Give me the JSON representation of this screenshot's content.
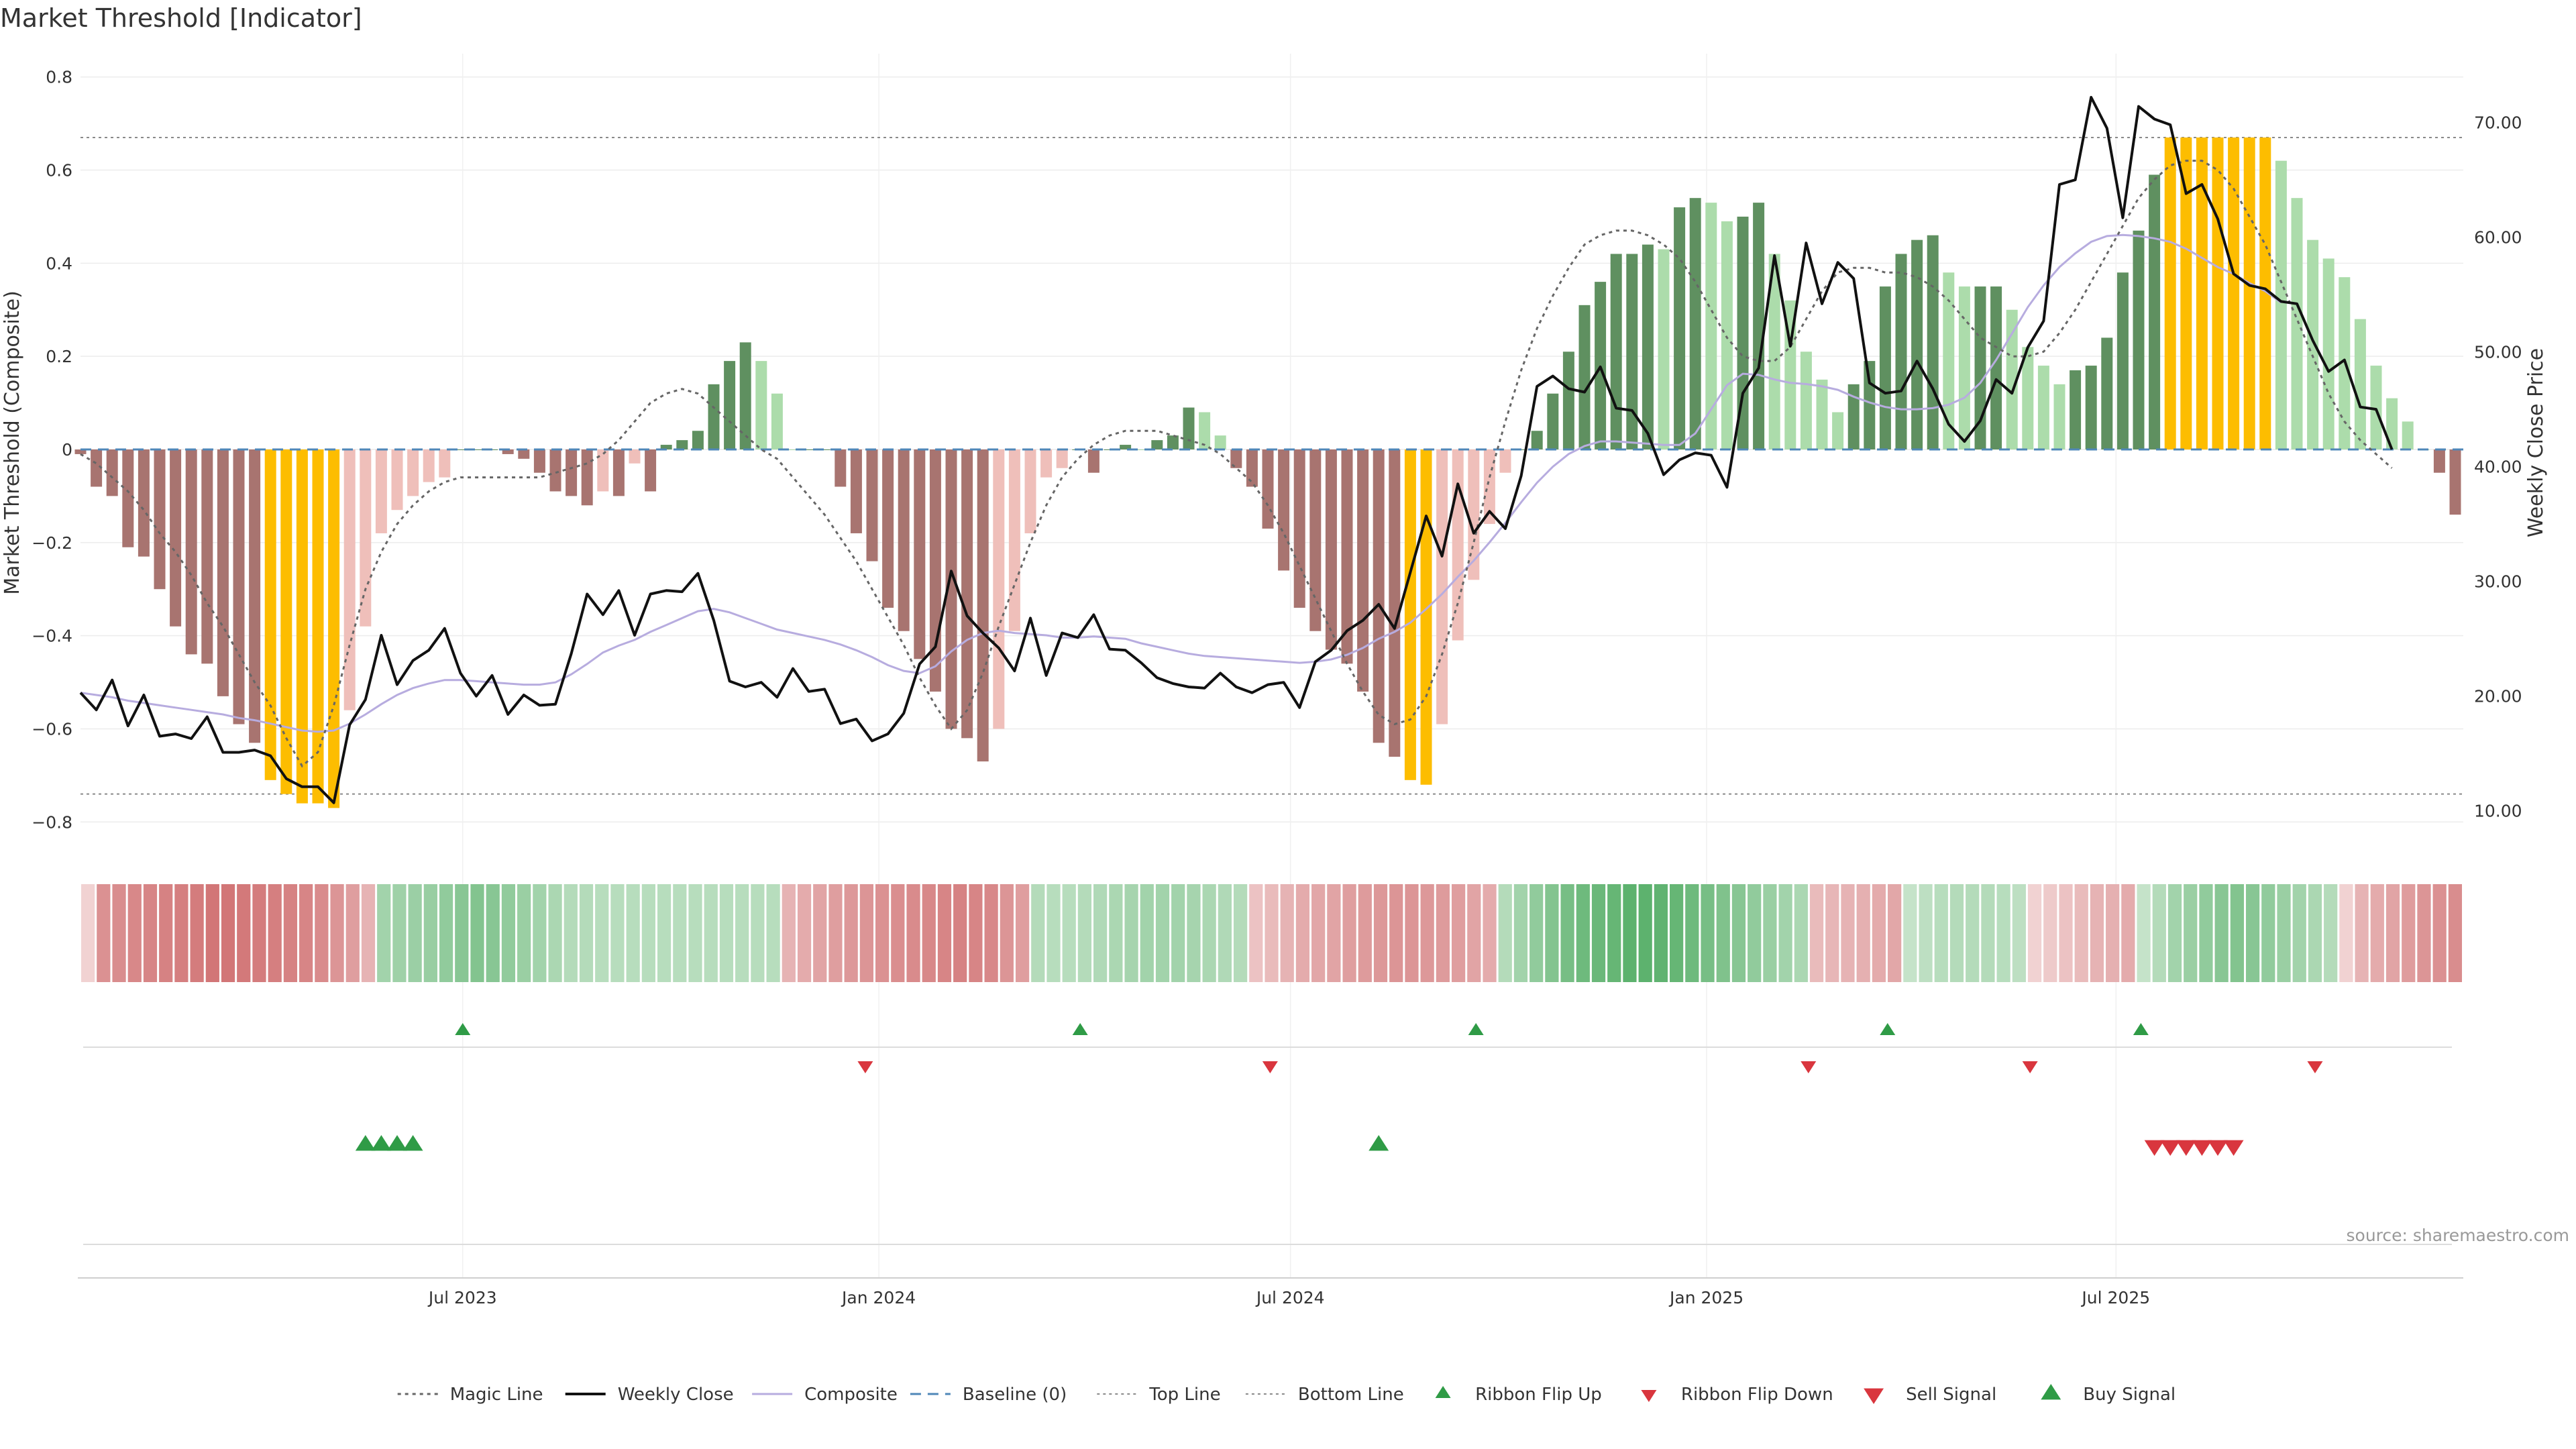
{
  "chart_data": {
    "type": "bar",
    "title": "Market Threshold [Indicator]",
    "ylabel_left": "Market Threshold (Composite)",
    "ylabel_right": "Weekly Close Price",
    "source": "source: sharemaestro.com",
    "start_date": "2023-01-13",
    "x_ticks": [
      "Jul 2023",
      "Jan 2024",
      "Jul 2024",
      "Jan 2025",
      "Jul 2025"
    ],
    "x_tick_dates": [
      "2023-07-01",
      "2024-01-01",
      "2024-07-01",
      "2025-01-01",
      "2025-07-01"
    ],
    "y_left_ticks": [
      "0.8",
      "0.6",
      "0.4",
      "0.2",
      "0",
      "−0.2",
      "−0.4",
      "−0.6",
      "−0.8"
    ],
    "y_left_values": [
      0.8,
      0.6,
      0.4,
      0.2,
      0,
      -0.2,
      -0.4,
      -0.6,
      -0.8
    ],
    "y_right_ticks": [
      "70.00",
      "60.00",
      "50.00",
      "40.00",
      "30.00",
      "20.00",
      "10.00"
    ],
    "y_right_values": [
      70,
      60,
      50,
      40,
      30,
      20,
      10
    ],
    "ylim_left": [
      -0.85,
      0.85
    ],
    "ylim_right": [
      7,
      76
    ],
    "top_line": 0.67,
    "bottom_line": -0.74,
    "grid": true,
    "legend_position": "bottom",
    "colors": {
      "bar_down_strong": "#a87470",
      "bar_down_weak": "#efbfba",
      "bar_up_strong": "#5f9060",
      "bar_up_weak": "#acdcab",
      "bar_extreme": "#fdbd00",
      "weekly_close": "#111111",
      "composite": "#b7acdf",
      "magic": "#666666",
      "baseline": "#4f87b8",
      "signal_up": "#2f9b46",
      "signal_down": "#d9363e"
    },
    "series": [
      {
        "name": "Composite",
        "values": [
          -0.01,
          -0.08,
          -0.1,
          -0.21,
          -0.23,
          -0.3,
          -0.38,
          -0.44,
          -0.46,
          -0.53,
          -0.59,
          -0.63,
          -0.71,
          -0.74,
          -0.76,
          -0.76,
          -0.77,
          -0.56,
          -0.38,
          -0.18,
          -0.13,
          -0.1,
          -0.07,
          -0.06,
          0,
          0,
          0,
          -0.01,
          -0.02,
          -0.05,
          -0.09,
          -0.1,
          -0.12,
          -0.09,
          -0.1,
          -0.03,
          -0.09,
          0.01,
          0.02,
          0.04,
          0.14,
          0.19,
          0.23,
          0.19,
          0.12,
          0,
          0,
          0,
          -0.08,
          -0.18,
          -0.24,
          -0.34,
          -0.39,
          -0.45,
          -0.52,
          -0.6,
          -0.62,
          -0.67,
          -0.6,
          -0.39,
          -0.18,
          -0.06,
          -0.04,
          0,
          -0.05,
          0,
          0.01,
          0,
          0.02,
          0.03,
          0.09,
          0.08,
          0.03,
          -0.04,
          -0.08,
          -0.17,
          -0.26,
          -0.34,
          -0.39,
          -0.43,
          -0.46,
          -0.52,
          -0.63,
          -0.66,
          -0.71,
          -0.72,
          -0.59,
          -0.41,
          -0.28,
          -0.16,
          -0.05,
          0,
          0.04,
          0.12,
          0.21,
          0.31,
          0.36,
          0.42,
          0.42,
          0.44,
          0.43,
          0.52,
          0.54,
          0.53,
          0.49,
          0.5,
          0.53,
          0.42,
          0.32,
          0.21,
          0.15,
          0.08,
          0.14,
          0.19,
          0.35,
          0.42,
          0.45,
          0.46,
          0.38,
          0.35,
          0.35,
          0.35,
          0.3,
          0.22,
          0.18,
          0.14,
          0.17,
          0.18,
          0.24,
          0.38,
          0.47,
          0.59,
          0.67,
          0.67,
          0.67,
          0.67,
          0.67,
          0.67,
          0.67,
          0.62,
          0.54,
          0.45,
          0.41,
          0.37,
          0.28,
          0.18,
          0.11,
          0.06,
          0,
          -0.05,
          -0.14
        ]
      },
      {
        "name": "Weekly Close",
        "values": [
          20.3,
          18.8,
          21.4,
          17.4,
          20.1,
          16.5,
          16.7,
          16.3,
          18.2,
          15.1,
          15.1,
          15.3,
          14.8,
          12.8,
          12.1,
          12.1,
          10.7,
          17.5,
          19.7,
          25.3,
          21.0,
          23.1,
          24.0,
          25.9,
          22.0,
          20.0,
          21.8,
          18.4,
          20.1,
          19.2,
          19.3,
          23.7,
          28.9,
          27.1,
          29.2,
          25.3,
          28.9,
          29.2,
          29.1,
          30.7,
          26.6,
          21.3,
          20.8,
          21.2,
          19.9,
          22.4,
          20.4,
          20.6,
          17.6,
          18.0,
          16.1,
          16.7,
          18.5,
          22.8,
          24.3,
          30.9,
          27.0,
          25.5,
          24.2,
          22.2,
          26.8,
          21.8,
          25.5,
          25.1,
          27.1,
          24.1,
          24.0,
          22.9,
          21.6,
          21.1,
          20.8,
          20.7,
          22.0,
          20.8,
          20.3,
          21.0,
          21.2,
          19.0,
          23.0,
          24.0,
          25.7,
          26.6,
          28.0,
          25.9,
          30.8,
          35.7,
          32.2,
          38.5,
          34.2,
          36.1,
          34.6,
          39.2,
          47.0,
          47.9,
          46.8,
          46.5,
          48.7,
          45.1,
          44.9,
          42.9,
          39.3,
          40.6,
          41.2,
          41.0,
          38.2,
          46.4,
          48.6,
          58.4,
          50.5,
          59.5,
          54.2,
          57.8,
          56.4,
          47.3,
          46.4,
          46.6,
          49.2,
          46.8,
          43.7,
          42.2,
          44.0,
          47.6,
          46.4,
          50.4,
          52.7,
          64.6,
          65.0,
          72.2,
          69.5,
          61.7,
          71.4,
          70.3,
          69.8,
          63.8,
          64.6,
          61.6,
          56.8,
          55.8,
          55.5,
          54.4,
          54.2,
          51.0,
          48.3,
          49.3,
          45.2,
          45.0,
          41.5
        ],
        "style": "solid"
      },
      {
        "name": "Composite",
        "values": [
          20.3,
          20.1,
          19.9,
          19.6,
          19.4,
          19.2,
          19.0,
          18.8,
          18.6,
          18.4,
          18.1,
          17.9,
          17.6,
          17.3,
          17.0,
          16.9,
          17.0,
          17.6,
          18.4,
          19.3,
          20.1,
          20.7,
          21.1,
          21.4,
          21.4,
          21.3,
          21.2,
          21.1,
          21.0,
          21.0,
          21.2,
          21.9,
          22.8,
          23.8,
          24.4,
          24.9,
          25.6,
          26.2,
          26.8,
          27.4,
          27.6,
          27.3,
          26.8,
          26.3,
          25.8,
          25.5,
          25.2,
          24.9,
          24.5,
          24.0,
          23.4,
          22.7,
          22.2,
          22.0,
          22.6,
          23.9,
          24.9,
          25.5,
          25.7,
          25.5,
          25.4,
          25.3,
          25.1,
          25.1,
          25.2,
          25.1,
          25.0,
          24.6,
          24.3,
          24.0,
          23.7,
          23.5,
          23.4,
          23.3,
          23.2,
          23.1,
          23.0,
          22.9,
          23.0,
          23.2,
          23.6,
          24.2,
          25.0,
          25.6,
          26.4,
          27.6,
          28.9,
          30.4,
          31.8,
          33.4,
          35.1,
          36.9,
          38.6,
          40.0,
          41.1,
          41.8,
          42.2,
          42.2,
          42.1,
          42.0,
          41.9,
          41.9,
          42.9,
          45.0,
          47.1,
          48.1,
          48.0,
          47.6,
          47.3,
          47.2,
          47.0,
          46.7,
          46.1,
          45.6,
          45.2,
          45.0,
          45.0,
          45.1,
          45.4,
          46.0,
          47.3,
          49.3,
          51.6,
          53.9,
          55.8,
          57.4,
          58.6,
          59.6,
          60.1,
          60.2,
          60.1,
          59.9,
          59.6,
          59.0,
          58.2,
          57.4,
          56.8,
          56.0,
          55.3,
          54.3
        ],
        "style": "smoothed"
      },
      {
        "name": "Magic Line",
        "values": [
          -0.01,
          -0.03,
          -0.06,
          -0.09,
          -0.13,
          -0.18,
          -0.22,
          -0.27,
          -0.33,
          -0.38,
          -0.44,
          -0.5,
          -0.55,
          -0.62,
          -0.68,
          -0.65,
          -0.55,
          -0.42,
          -0.3,
          -0.22,
          -0.16,
          -0.12,
          -0.09,
          -0.07,
          -0.06,
          -0.06,
          -0.06,
          -0.06,
          -0.06,
          -0.06,
          -0.05,
          -0.04,
          -0.03,
          -0.01,
          0.02,
          0.06,
          0.1,
          0.12,
          0.13,
          0.12,
          0.09,
          0.06,
          0.03,
          0.0,
          -0.02,
          -0.06,
          -0.1,
          -0.14,
          -0.19,
          -0.24,
          -0.3,
          -0.36,
          -0.42,
          -0.49,
          -0.55,
          -0.6,
          -0.56,
          -0.48,
          -0.38,
          -0.29,
          -0.2,
          -0.12,
          -0.06,
          -0.02,
          0.01,
          0.03,
          0.04,
          0.04,
          0.04,
          0.03,
          0.02,
          0.01,
          -0.01,
          -0.04,
          -0.07,
          -0.12,
          -0.18,
          -0.25,
          -0.32,
          -0.39,
          -0.46,
          -0.52,
          -0.57,
          -0.59,
          -0.58,
          -0.53,
          -0.44,
          -0.33,
          -0.2,
          -0.06,
          0.06,
          0.17,
          0.26,
          0.33,
          0.39,
          0.44,
          0.46,
          0.47,
          0.47,
          0.46,
          0.44,
          0.41,
          0.36,
          0.3,
          0.24,
          0.2,
          0.19,
          0.19,
          0.22,
          0.28,
          0.34,
          0.38,
          0.39,
          0.39,
          0.38,
          0.38,
          0.37,
          0.35,
          0.32,
          0.28,
          0.24,
          0.22,
          0.2,
          0.2,
          0.21,
          0.25,
          0.3,
          0.36,
          0.42,
          0.48,
          0.54,
          0.58,
          0.61,
          0.62,
          0.62,
          0.6,
          0.56,
          0.5,
          0.44,
          0.36,
          0.28,
          0.2,
          0.12,
          0.06,
          0.02,
          -0.01,
          -0.04
        ],
        "style": "dotted"
      }
    ],
    "ribbon": [
      -0.1,
      -0.52,
      -0.55,
      -0.58,
      -0.6,
      -0.62,
      -0.64,
      -0.66,
      -0.7,
      -0.7,
      -0.68,
      -0.66,
      -0.64,
      -0.62,
      -0.6,
      -0.56,
      -0.5,
      -0.44,
      -0.3,
      0.4,
      0.42,
      0.44,
      0.46,
      0.5,
      0.55,
      0.58,
      0.55,
      0.5,
      0.45,
      0.4,
      0.35,
      0.3,
      0.3,
      0.28,
      0.28,
      0.28,
      0.28,
      0.28,
      0.28,
      0.28,
      0.28,
      0.28,
      0.28,
      0.28,
      0.28,
      -0.3,
      -0.35,
      -0.4,
      -0.44,
      -0.48,
      -0.5,
      -0.52,
      -0.54,
      -0.56,
      -0.58,
      -0.6,
      -0.62,
      -0.6,
      -0.58,
      -0.5,
      -0.44,
      0.3,
      0.28,
      0.28,
      0.3,
      0.32,
      0.35,
      0.38,
      0.4,
      0.4,
      0.4,
      0.38,
      0.35,
      0.32,
      0.3,
      -0.2,
      -0.25,
      -0.3,
      -0.35,
      -0.38,
      -0.4,
      -0.44,
      -0.46,
      -0.48,
      -0.5,
      -0.5,
      -0.48,
      -0.46,
      -0.44,
      -0.4,
      -0.35,
      0.3,
      0.4,
      0.5,
      0.58,
      0.65,
      0.7,
      0.72,
      0.75,
      0.8,
      0.8,
      0.78,
      0.75,
      0.7,
      0.65,
      0.6,
      0.55,
      0.5,
      0.45,
      0.4,
      0.35,
      -0.25,
      -0.28,
      -0.3,
      -0.32,
      -0.35,
      -0.38,
      0.2,
      0.25,
      0.28,
      0.3,
      0.3,
      0.3,
      0.28,
      0.25,
      -0.1,
      -0.15,
      -0.2,
      -0.25,
      -0.3,
      -0.32,
      -0.35,
      0.2,
      0.3,
      0.4,
      0.45,
      0.5,
      0.55,
      0.58,
      0.55,
      0.5,
      0.45,
      0.4,
      0.35,
      0.3,
      -0.1,
      -0.3,
      -0.35,
      -0.4,
      -0.45,
      -0.5,
      -0.52,
      -0.55
    ],
    "ribbon_flip_up_dates": [
      "2023-07-01",
      "2024-03-30",
      "2024-09-21",
      "2025-03-22",
      "2025-07-12"
    ],
    "ribbon_flip_down_dates": [
      "2023-12-26",
      "2024-06-22",
      "2025-02-15",
      "2025-05-24",
      "2025-09-27"
    ],
    "buy_signal_dates": [
      "2023-05-19",
      "2023-05-26",
      "2023-06-02",
      "2023-06-09",
      "2024-08-09"
    ],
    "sell_signal_dates": [
      "2025-07-18",
      "2025-07-25",
      "2025-08-01",
      "2025-08-08",
      "2025-08-15",
      "2025-08-22"
    ],
    "legend": [
      {
        "label": "Magic Line",
        "kind": "dotted"
      },
      {
        "label": "Weekly Close",
        "kind": "solid"
      },
      {
        "label": "Composite",
        "kind": "lavender"
      },
      {
        "label": "Baseline (0)",
        "kind": "dashed"
      },
      {
        "label": "Top Line",
        "kind": "finedot"
      },
      {
        "label": "Bottom Line",
        "kind": "finedot"
      },
      {
        "label": "Ribbon Flip Up",
        "kind": "tri-up-small"
      },
      {
        "label": "Ribbon Flip Down",
        "kind": "tri-down-small"
      },
      {
        "label": "Sell Signal",
        "kind": "tri-down"
      },
      {
        "label": "Buy Signal",
        "kind": "tri-up"
      }
    ]
  }
}
